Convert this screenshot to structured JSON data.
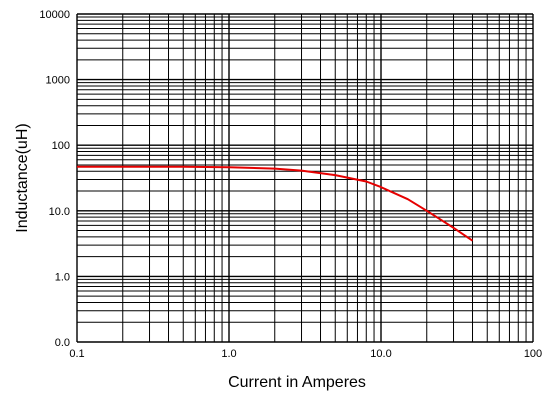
{
  "chart_data": {
    "type": "line",
    "title": "",
    "xlabel": "Current in Amperes",
    "ylabel": "Inductance(uH)",
    "x_scale": "log",
    "y_scale": "log",
    "xlim": [
      0.1,
      100
    ],
    "ylim": [
      0.0,
      10000
    ],
    "grid": true,
    "x_tick_labels": [
      "0.1",
      "1.0",
      "10.0",
      "100"
    ],
    "y_tick_labels": [
      "10000",
      "1000",
      "100",
      "10.0",
      "1.0",
      "0.0"
    ],
    "series": [
      {
        "color": "#e60000",
        "x": [
          0.1,
          0.2,
          0.5,
          1.0,
          2.0,
          3.0,
          5.0,
          8.0,
          10.0,
          15.0,
          20.0,
          30.0,
          40.0
        ],
        "y": [
          47,
          47,
          47,
          46,
          44,
          41,
          35,
          28,
          23,
          15,
          10,
          5.5,
          3.5
        ]
      }
    ]
  }
}
